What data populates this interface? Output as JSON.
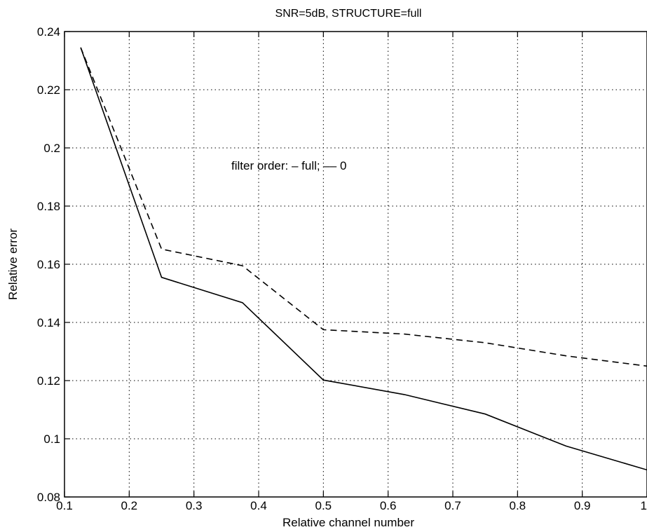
{
  "chart_data": {
    "type": "line",
    "title": "SNR=5dB, STRUCTURE=full",
    "xlabel": "Relative channel number",
    "ylabel": "Relative error",
    "xlim": [
      0.1,
      1.0
    ],
    "ylim": [
      0.08,
      0.24
    ],
    "xticks": [
      0.1,
      0.2,
      0.3,
      0.4,
      0.5,
      0.6,
      0.7,
      0.8,
      0.9,
      1
    ],
    "xtick_labels": [
      "0.1",
      "0.2",
      "0.3",
      "0.4",
      "0.5",
      "0.6",
      "0.7",
      "0.8",
      "0.9",
      "1"
    ],
    "yticks": [
      0.08,
      0.1,
      0.12,
      0.14,
      0.16,
      0.18,
      0.2,
      0.22,
      0.24
    ],
    "ytick_labels": [
      "0.08",
      "0.1",
      "0.12",
      "0.14",
      "0.16",
      "0.18",
      "0.2",
      "0.22",
      "0.24"
    ],
    "grid": true,
    "annotation": "filter order: – full; –– 0",
    "series": [
      {
        "style": "solid",
        "x": [
          0.125,
          0.25,
          0.375,
          0.5,
          0.625,
          0.75,
          0.875,
          1.0
        ],
        "values": [
          0.2345,
          0.1555,
          0.1468,
          0.1202,
          0.1152,
          0.1085,
          0.0975,
          0.0893
        ]
      },
      {
        "style": "dashed",
        "x": [
          0.125,
          0.25,
          0.375,
          0.5,
          0.625,
          0.75,
          0.875,
          1.0
        ],
        "values": [
          0.2345,
          0.1652,
          0.1595,
          0.1375,
          0.136,
          0.133,
          0.1285,
          0.125
        ]
      }
    ]
  }
}
